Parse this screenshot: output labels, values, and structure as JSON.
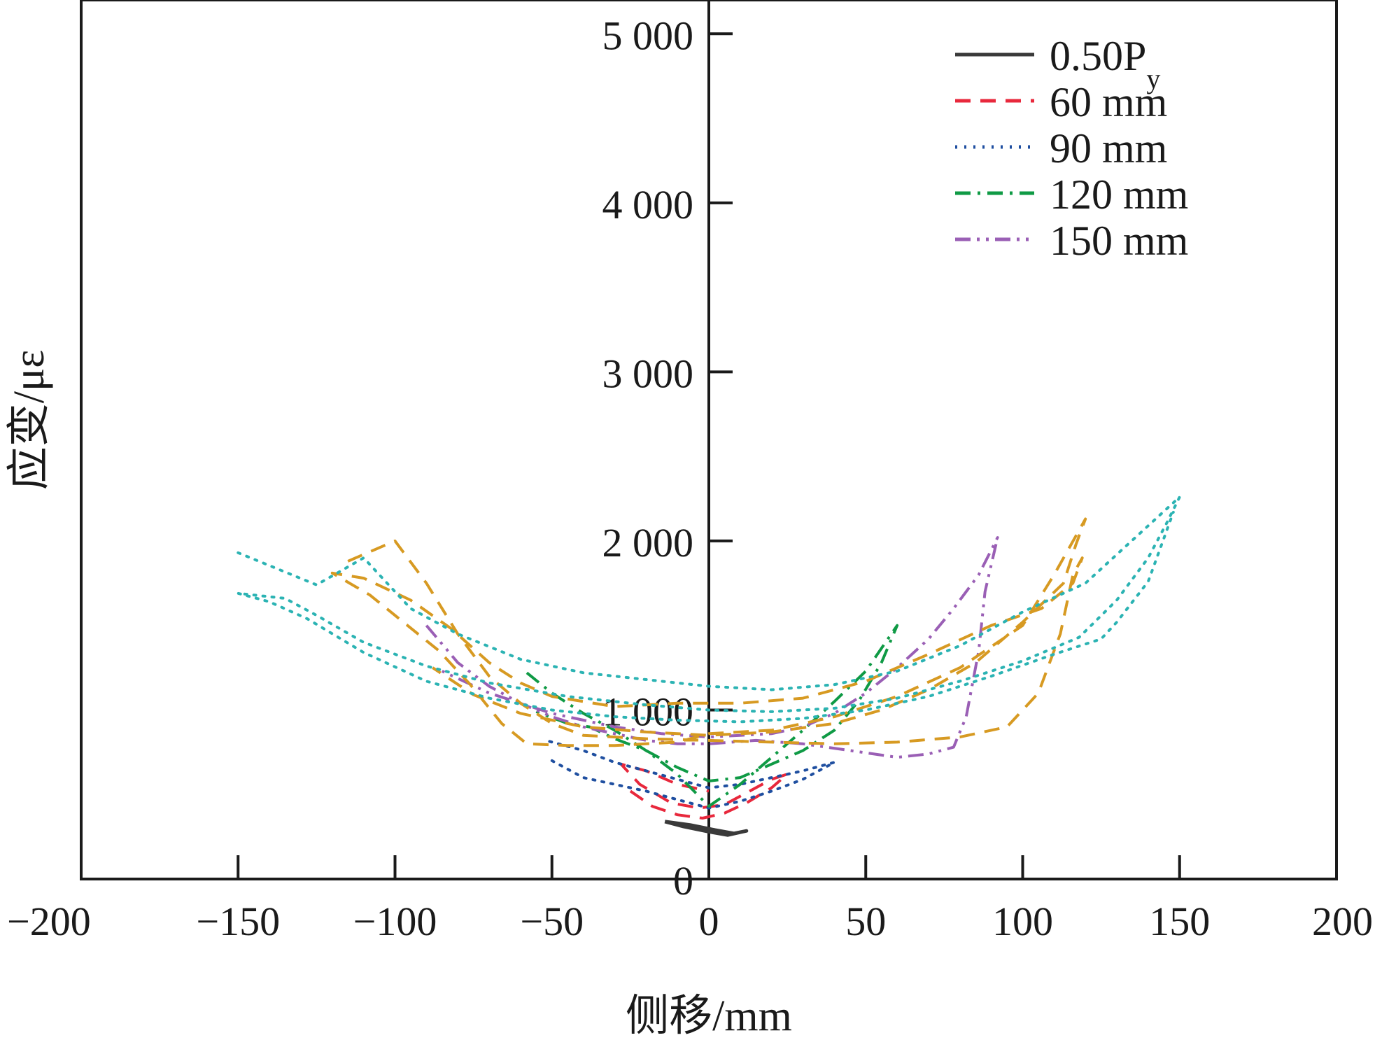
{
  "chart_data": {
    "type": "line",
    "title": "",
    "xlabel": "侧移/mm",
    "ylabel": "应变/με",
    "xlim": [
      -200,
      200
    ],
    "ylim": [
      0,
      5200
    ],
    "xticks": [
      -200,
      -150,
      -100,
      -50,
      0,
      50,
      100,
      150,
      200
    ],
    "xtick_labels": [
      "−200",
      "−150",
      "−100",
      "−50",
      "0",
      "50",
      "100",
      "150",
      "200"
    ],
    "yticks": [
      0,
      1000,
      2000,
      3000,
      4000,
      5000
    ],
    "ytick_labels": [
      "0",
      "1 000",
      "2 000",
      "3 000",
      "4 000",
      "5 000"
    ],
    "grid": false,
    "legend_position": "top-right",
    "legend": [
      {
        "label_main": "0.50P",
        "label_sub": "y",
        "color": "#3a3a3a",
        "dash": "solid"
      },
      {
        "label_main": "60 mm",
        "label_sub": "",
        "color": "#e8283c",
        "dash": "dash"
      },
      {
        "label_main": "90 mm",
        "label_sub": "",
        "color": "#1f4fa0",
        "dash": "dot"
      },
      {
        "label_main": "120 mm",
        "label_sub": "",
        "color": "#0f9a45",
        "dash": "dashdot"
      },
      {
        "label_main": "150 mm",
        "label_sub": "",
        "color": "#9a5fb5",
        "dash": "dashdotdot"
      }
    ],
    "series": [
      {
        "name": "0.50Py",
        "color": "#3a3a3a",
        "dash": "solid",
        "width": 5,
        "points": [
          [
            -14,
            340
          ],
          [
            -6,
            320
          ],
          [
            2,
            290
          ],
          [
            8,
            270
          ],
          [
            12,
            285
          ],
          [
            6,
            260
          ],
          [
            0,
            280
          ],
          [
            -8,
            310
          ],
          [
            -14,
            340
          ]
        ]
      },
      {
        "name": "60 mm",
        "color": "#e8283c",
        "dash": "dash",
        "width": 4,
        "points": [
          [
            -25,
            520
          ],
          [
            -18,
            430
          ],
          [
            -10,
            380
          ],
          [
            -2,
            360
          ],
          [
            5,
            390
          ],
          [
            12,
            450
          ],
          [
            20,
            540
          ],
          [
            25,
            620
          ],
          [
            20,
            590
          ],
          [
            12,
            510
          ],
          [
            5,
            440
          ],
          [
            -3,
            420
          ],
          [
            -12,
            450
          ],
          [
            -22,
            560
          ],
          [
            -28,
            680
          ],
          [
            -20,
            640
          ],
          [
            -10,
            560
          ],
          [
            0,
            520
          ]
        ]
      },
      {
        "name": "90 mm",
        "color": "#1f4fa0",
        "dash": "dot",
        "width": 4,
        "points": [
          [
            -50,
            700
          ],
          [
            -40,
            600
          ],
          [
            -30,
            560
          ],
          [
            -20,
            520
          ],
          [
            -10,
            470
          ],
          [
            0,
            420
          ],
          [
            10,
            460
          ],
          [
            20,
            520
          ],
          [
            30,
            590
          ],
          [
            40,
            690
          ],
          [
            30,
            640
          ],
          [
            20,
            600
          ],
          [
            10,
            560
          ],
          [
            0,
            540
          ],
          [
            -10,
            590
          ],
          [
            -20,
            640
          ],
          [
            -30,
            690
          ],
          [
            -40,
            760
          ],
          [
            -52,
            820
          ]
        ]
      },
      {
        "name": "120 mm",
        "color": "#0f9a45",
        "dash": "dashdot",
        "width": 4,
        "points": [
          [
            -58,
            1220
          ],
          [
            -50,
            1100
          ],
          [
            -40,
            980
          ],
          [
            -30,
            880
          ],
          [
            -20,
            760
          ],
          [
            -10,
            620
          ],
          [
            0,
            430
          ],
          [
            10,
            560
          ],
          [
            20,
            720
          ],
          [
            30,
            880
          ],
          [
            40,
            1050
          ],
          [
            50,
            1230
          ],
          [
            60,
            1500
          ],
          [
            55,
            1280
          ],
          [
            48,
            1060
          ],
          [
            40,
            880
          ],
          [
            30,
            760
          ],
          [
            20,
            680
          ],
          [
            10,
            600
          ],
          [
            0,
            580
          ],
          [
            -10,
            660
          ],
          [
            -20,
            760
          ],
          [
            -30,
            830
          ],
          [
            -38,
            900
          ],
          [
            -45,
            920
          ],
          [
            -55,
            990
          ]
        ]
      },
      {
        "name": "150 mm",
        "color": "#9a5fb5",
        "dash": "dashdotdot",
        "width": 4,
        "points": [
          [
            -90,
            1500
          ],
          [
            -80,
            1280
          ],
          [
            -70,
            1140
          ],
          [
            -60,
            1040
          ],
          [
            -50,
            960
          ],
          [
            -40,
            900
          ],
          [
            -30,
            860
          ],
          [
            -20,
            820
          ],
          [
            -10,
            800
          ],
          [
            0,
            800
          ],
          [
            15,
            820
          ],
          [
            30,
            800
          ],
          [
            45,
            760
          ],
          [
            60,
            720
          ],
          [
            70,
            740
          ],
          [
            78,
            780
          ],
          [
            82,
            960
          ],
          [
            86,
            1350
          ],
          [
            88,
            1700
          ],
          [
            92,
            2020
          ],
          [
            86,
            1800
          ],
          [
            78,
            1600
          ],
          [
            70,
            1420
          ],
          [
            60,
            1250
          ],
          [
            50,
            1100
          ],
          [
            40,
            980
          ],
          [
            30,
            900
          ],
          [
            20,
            860
          ],
          [
            10,
            850
          ],
          [
            0,
            840
          ],
          [
            -15,
            860
          ],
          [
            -30,
            900
          ],
          [
            -50,
            980
          ],
          [
            -70,
            1100
          ],
          [
            -85,
            1230
          ]
        ]
      },
      {
        "name": "",
        "color": "#d79a22",
        "dash": "dash",
        "width": 4,
        "points": [
          [
            -115,
            1880
          ],
          [
            -100,
            2000
          ],
          [
            -90,
            1750
          ],
          [
            -80,
            1450
          ],
          [
            -70,
            1200
          ],
          [
            -60,
            1040
          ],
          [
            -50,
            920
          ],
          [
            -40,
            850
          ],
          [
            -20,
            830
          ],
          [
            0,
            820
          ],
          [
            20,
            810
          ],
          [
            40,
            800
          ],
          [
            60,
            810
          ],
          [
            80,
            840
          ],
          [
            95,
            900
          ],
          [
            105,
            1100
          ],
          [
            112,
            1450
          ],
          [
            116,
            1800
          ],
          [
            119,
            1900
          ],
          [
            116,
            1750
          ],
          [
            106,
            1600
          ],
          [
            90,
            1500
          ],
          [
            70,
            1330
          ],
          [
            50,
            1170
          ],
          [
            30,
            1070
          ],
          [
            10,
            1040
          ],
          [
            -10,
            1040
          ],
          [
            -30,
            1020
          ],
          [
            -50,
            1080
          ],
          [
            -60,
            1160
          ],
          [
            -70,
            1280
          ],
          [
            -82,
            1480
          ],
          [
            -95,
            1650
          ],
          [
            -110,
            1780
          ],
          [
            -120,
            1810
          ],
          [
            -108,
            1680
          ],
          [
            -96,
            1500
          ],
          [
            -86,
            1350
          ],
          [
            -76,
            1150
          ],
          [
            -66,
            920
          ],
          [
            -58,
            800
          ],
          [
            -45,
            790
          ],
          [
            -30,
            790
          ],
          [
            -10,
            810
          ],
          [
            0,
            860
          ],
          [
            20,
            880
          ],
          [
            40,
            960
          ],
          [
            60,
            1080
          ],
          [
            80,
            1250
          ],
          [
            100,
            1500
          ],
          [
            110,
            1800
          ],
          [
            120,
            2130
          ],
          [
            117,
            1980
          ],
          [
            113,
            1750
          ],
          [
            100,
            1520
          ],
          [
            85,
            1280
          ],
          [
            70,
            1120
          ],
          [
            55,
            1000
          ],
          [
            40,
            920
          ],
          [
            20,
            870
          ],
          [
            0,
            850
          ],
          [
            -20,
            870
          ],
          [
            -40,
            900
          ],
          [
            -60,
            980
          ],
          [
            -75,
            1090
          ],
          [
            -88,
            1250
          ]
        ]
      },
      {
        "name": "",
        "color": "#2bb3b3",
        "dash": "dot",
        "width": 4,
        "points": [
          [
            -150,
            1930
          ],
          [
            -125,
            1740
          ],
          [
            -110,
            1900
          ],
          [
            -95,
            1600
          ],
          [
            -80,
            1450
          ],
          [
            -60,
            1300
          ],
          [
            -40,
            1220
          ],
          [
            -20,
            1180
          ],
          [
            0,
            1140
          ],
          [
            20,
            1120
          ],
          [
            40,
            1150
          ],
          [
            60,
            1230
          ],
          [
            80,
            1380
          ],
          [
            100,
            1580
          ],
          [
            120,
            1750
          ],
          [
            150,
            2260
          ],
          [
            146,
            2110
          ],
          [
            140,
            1900
          ],
          [
            130,
            1650
          ],
          [
            118,
            1430
          ],
          [
            100,
            1290
          ],
          [
            80,
            1170
          ],
          [
            60,
            1070
          ],
          [
            40,
            1010
          ],
          [
            20,
            990
          ],
          [
            0,
            1000
          ],
          [
            -20,
            1030
          ],
          [
            -45,
            1080
          ],
          [
            -70,
            1160
          ],
          [
            -90,
            1260
          ],
          [
            -110,
            1400
          ],
          [
            -125,
            1560
          ],
          [
            -135,
            1660
          ],
          [
            -150,
            1690
          ],
          [
            -140,
            1640
          ],
          [
            -128,
            1540
          ],
          [
            -110,
            1340
          ],
          [
            -90,
            1170
          ],
          [
            -70,
            1070
          ],
          [
            -50,
            1000
          ],
          [
            -30,
            960
          ],
          [
            -10,
            940
          ],
          [
            10,
            930
          ],
          [
            30,
            950
          ],
          [
            50,
            1000
          ],
          [
            70,
            1080
          ],
          [
            90,
            1200
          ],
          [
            110,
            1330
          ],
          [
            125,
            1420
          ],
          [
            130,
            1520
          ],
          [
            140,
            1760
          ],
          [
            148,
            2170
          ]
        ]
      }
    ]
  }
}
